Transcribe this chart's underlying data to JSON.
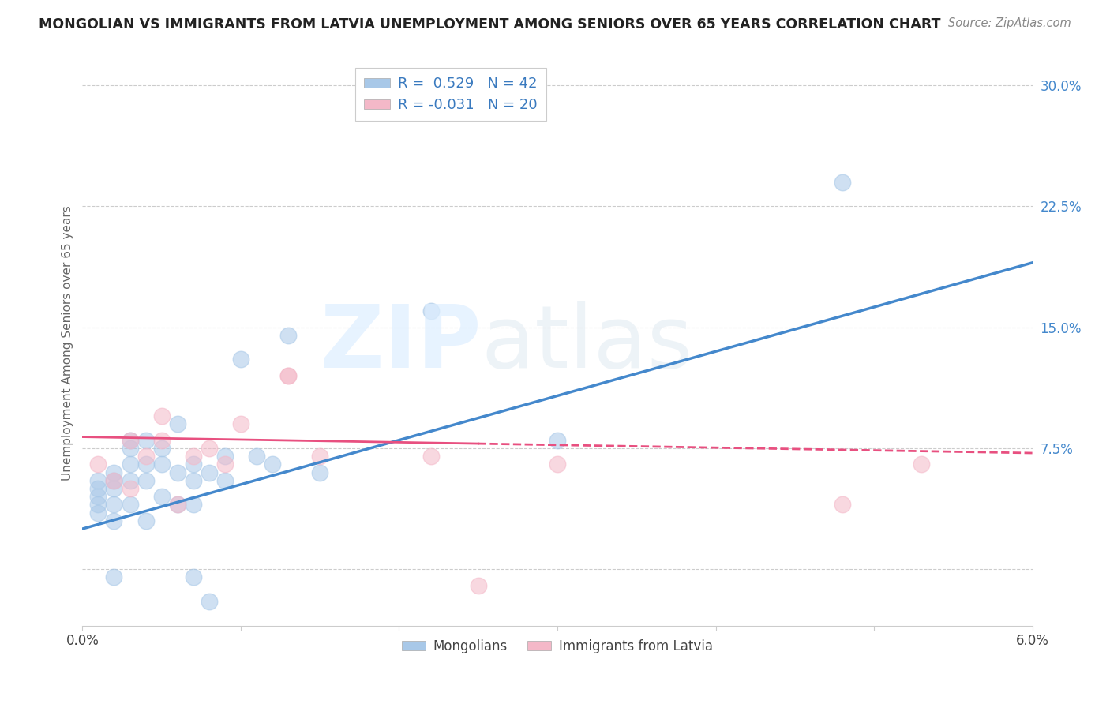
{
  "title": "MONGOLIAN VS IMMIGRANTS FROM LATVIA UNEMPLOYMENT AMONG SENIORS OVER 65 YEARS CORRELATION CHART",
  "source": "Source: ZipAtlas.com",
  "ylabel": "Unemployment Among Seniors over 65 years",
  "yticks": [
    0.0,
    0.075,
    0.15,
    0.225,
    0.3
  ],
  "ytick_labels": [
    "",
    "7.5%",
    "15.0%",
    "22.5%",
    "30.0%"
  ],
  "xlim": [
    0.0,
    0.06
  ],
  "ylim": [
    -0.035,
    0.315
  ],
  "mongolian_color": "#a8c8e8",
  "latvia_color": "#f4b8c8",
  "line_mongolian_color": "#4488cc",
  "line_latvia_color": "#e85080",
  "legend_r1": "R =  0.529   N = 42",
  "legend_r2": "R = -0.031   N = 20",
  "mongolian_x": [
    0.001,
    0.001,
    0.001,
    0.001,
    0.001,
    0.002,
    0.002,
    0.002,
    0.002,
    0.002,
    0.002,
    0.003,
    0.003,
    0.003,
    0.003,
    0.003,
    0.004,
    0.004,
    0.004,
    0.004,
    0.005,
    0.005,
    0.005,
    0.006,
    0.006,
    0.006,
    0.007,
    0.007,
    0.007,
    0.007,
    0.008,
    0.008,
    0.009,
    0.009,
    0.01,
    0.011,
    0.012,
    0.013,
    0.015,
    0.022,
    0.03,
    0.048
  ],
  "mongolian_y": [
    0.035,
    0.04,
    0.045,
    0.05,
    0.055,
    0.03,
    0.04,
    0.05,
    0.055,
    0.06,
    -0.005,
    0.04,
    0.055,
    0.065,
    0.075,
    0.08,
    0.03,
    0.055,
    0.065,
    0.08,
    0.045,
    0.065,
    0.075,
    0.04,
    0.06,
    0.09,
    -0.005,
    0.04,
    0.055,
    0.065,
    -0.02,
    0.06,
    0.055,
    0.07,
    0.13,
    0.07,
    0.065,
    0.145,
    0.06,
    0.16,
    0.08,
    0.24
  ],
  "latvia_x": [
    0.001,
    0.002,
    0.003,
    0.003,
    0.004,
    0.005,
    0.005,
    0.006,
    0.007,
    0.008,
    0.009,
    0.01,
    0.013,
    0.013,
    0.015,
    0.022,
    0.025,
    0.03,
    0.048,
    0.053
  ],
  "latvia_y": [
    0.065,
    0.055,
    0.05,
    0.08,
    0.07,
    0.08,
    0.095,
    0.04,
    0.07,
    0.075,
    0.065,
    0.09,
    0.12,
    0.12,
    0.07,
    0.07,
    -0.01,
    0.065,
    0.04,
    0.065
  ],
  "line_blue_x0": 0.0,
  "line_blue_y0": 0.025,
  "line_blue_x1": 0.06,
  "line_blue_y1": 0.19,
  "line_pink_x0": 0.0,
  "line_pink_y0": 0.082,
  "line_pink_x1": 0.06,
  "line_pink_y1": 0.072
}
